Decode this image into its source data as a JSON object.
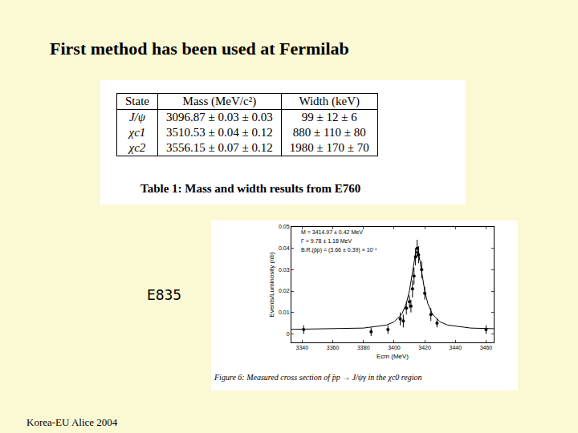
{
  "title": "First method has been used at Fermilab",
  "table": {
    "header": [
      "State",
      "Mass (MeV/c²)",
      "Width (keV)"
    ],
    "rows": [
      [
        "J/ψ",
        "3096.87 ± 0.03 ± 0.03",
        "99 ± 12 ± 6"
      ],
      [
        "χc1",
        "3510.53 ± 0.04 ± 0.12",
        "880 ± 110 ± 80"
      ],
      [
        "χc2",
        "3556.15 ± 0.07 ± 0.12",
        "1980 ± 170 ± 70"
      ]
    ],
    "caption": "Table 1: Mass and width results from E760"
  },
  "side_label": "E835",
  "chart_data": {
    "type": "scatter",
    "x_label": "Ecm (MeV)",
    "y_label": "Events/Luminosity (nb)",
    "annotations": [
      "M = 3414.97 ± 0.42 MeV",
      "Γ = 9.78 ± 1.18 MeV",
      "B.R.(p̄p) = (3.66 ± 0.39) × 10⁻⁴"
    ],
    "caption": "Figure 6: Measured cross section of p̄p → J/ψγ in the χc0 region",
    "xlim": [
      3333,
      3465
    ],
    "xticks": [
      3340,
      3360,
      3380,
      3400,
      3420,
      3440,
      3460
    ],
    "ylim": [
      -0.004,
      0.05
    ],
    "yticks": [
      0,
      0.01,
      0.02,
      0.03,
      0.04,
      0.05
    ],
    "grid": false,
    "series": [
      {
        "type": "scatter",
        "marker": "circle",
        "color": "#000000",
        "x": [
          3341,
          3385,
          3396,
          3404,
          3406,
          3408,
          3410,
          3411,
          3412,
          3413,
          3414,
          3415,
          3416,
          3418,
          3420,
          3424,
          3428,
          3460
        ],
        "values": [
          0.002,
          0.001,
          0.002,
          0.007,
          0.006,
          0.012,
          0.015,
          0.013,
          0.021,
          0.027,
          0.036,
          0.04,
          0.037,
          0.03,
          0.019,
          0.009,
          0.005,
          0.002
        ],
        "error": [
          0.002,
          0.002,
          0.002,
          0.003,
          0.003,
          0.003,
          0.003,
          0.003,
          0.004,
          0.004,
          0.004,
          0.004,
          0.004,
          0.004,
          0.003,
          0.003,
          0.002,
          0.002
        ]
      },
      {
        "type": "line",
        "line_style": "solid",
        "color": "#000000",
        "x": [
          3333,
          3360,
          3380,
          3395,
          3400,
          3405,
          3408,
          3410,
          3412,
          3413,
          3414,
          3415,
          3416,
          3417,
          3418,
          3420,
          3422,
          3425,
          3430,
          3435,
          3450,
          3465
        ],
        "values": [
          0.0021,
          0.0023,
          0.0027,
          0.0041,
          0.0056,
          0.0092,
          0.0142,
          0.0201,
          0.0289,
          0.0337,
          0.0375,
          0.039,
          0.0375,
          0.0337,
          0.0289,
          0.0201,
          0.0142,
          0.0092,
          0.0056,
          0.0041,
          0.0027,
          0.0024
        ]
      }
    ]
  },
  "footer": "Korea-EU Alice 2004"
}
